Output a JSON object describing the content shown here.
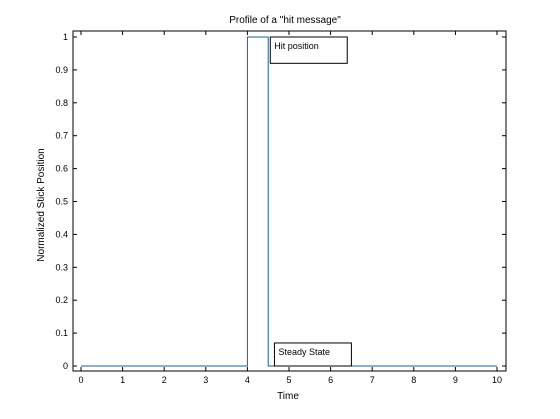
{
  "chart_data": {
    "type": "line",
    "title": "Profile of a \"hit message\"",
    "xlabel": "Time",
    "ylabel": "Normalized Stick Position",
    "xlim": [
      0,
      10
    ],
    "ylim": [
      0,
      1
    ],
    "xticks": [
      "0",
      "1",
      "2",
      "3",
      "4",
      "5",
      "6",
      "7",
      "8",
      "9",
      "10"
    ],
    "yticks": [
      "0",
      "0.1",
      "0.2",
      "0.3",
      "0.4",
      "0.5",
      "0.6",
      "0.7",
      "0.8",
      "0.9",
      "1"
    ],
    "grid": false,
    "series": [
      {
        "color": "#1f5f8b",
        "x": [
          0,
          4,
          4,
          4.5,
          4.5,
          10
        ],
        "y": [
          0,
          0,
          1,
          1,
          0,
          0
        ]
      }
    ],
    "annotations": [
      {
        "text": "Hit position",
        "x": 4.55,
        "y": 1.0,
        "x_end": 6.4,
        "y_end": 0.92
      },
      {
        "text": "Steady State",
        "x": 4.65,
        "y": 0.07,
        "x_end": 6.5,
        "y_end": 0.0
      }
    ]
  }
}
